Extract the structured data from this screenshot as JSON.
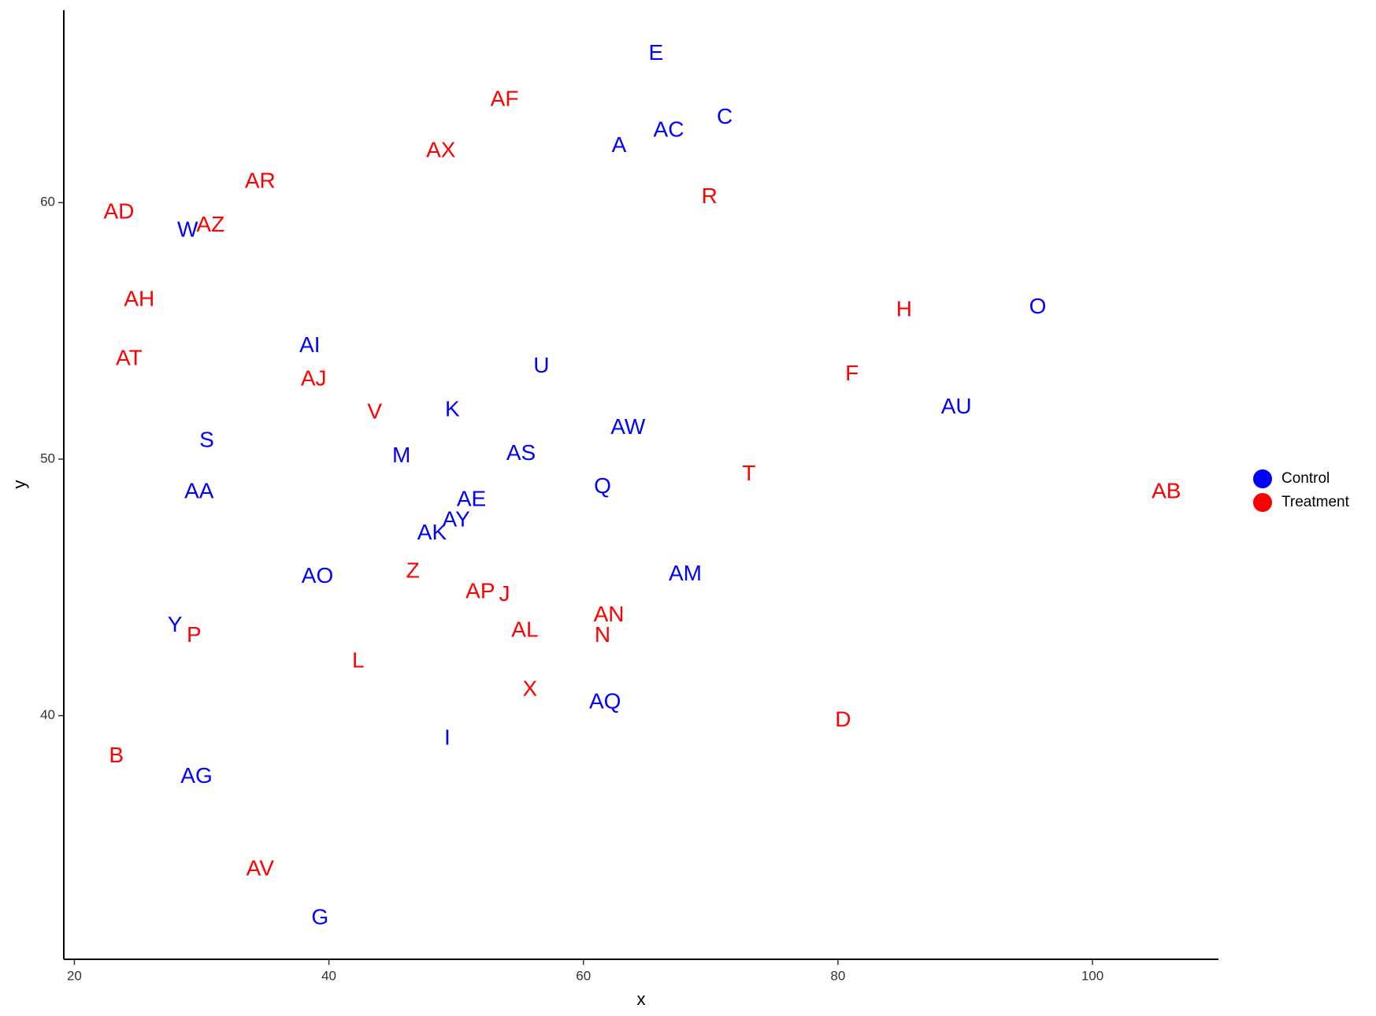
{
  "chart_data": {
    "type": "scatter",
    "xlabel": "x",
    "ylabel": "y",
    "xlim": [
      19.17,
      109.9
    ],
    "ylim": [
      30.5,
      67.5
    ],
    "xticks": [
      20,
      40,
      60,
      80,
      100
    ],
    "yticks": [
      40,
      50,
      60
    ],
    "grid": false,
    "legend": "right",
    "series": [
      {
        "name": "Control",
        "color": "#0000ff",
        "labels": [
          "E",
          "C",
          "AC",
          "A",
          "W",
          "O",
          "AI",
          "U",
          "K",
          "AU",
          "AW",
          "S",
          "M",
          "AS",
          "Q",
          "AA",
          "AE",
          "AY",
          "AK",
          "AO",
          "AM",
          "Y",
          "AQ",
          "I",
          "AG",
          "G"
        ],
        "x": [
          65.7,
          71.1,
          66.7,
          62.8,
          28.9,
          95.7,
          38.5,
          56.7,
          49.7,
          89.3,
          63.5,
          30.4,
          45.7,
          55.1,
          61.5,
          29.8,
          51.2,
          50.0,
          48.1,
          39.1,
          68.0,
          27.9,
          61.7,
          49.3,
          29.6,
          39.3
        ],
        "values": [
          65.8,
          63.3,
          62.8,
          62.2,
          58.9,
          55.9,
          54.4,
          53.6,
          51.9,
          52.0,
          51.2,
          50.7,
          50.1,
          50.2,
          48.9,
          48.7,
          48.4,
          47.6,
          47.1,
          45.4,
          45.5,
          43.5,
          40.5,
          39.1,
          37.6,
          32.1
        ]
      },
      {
        "name": "Treatment",
        "color": "#ff0000",
        "labels": [
          "AF",
          "AX",
          "AR",
          "R",
          "AD",
          "AZ",
          "AH",
          "H",
          "AT",
          "F",
          "AJ",
          "V",
          "T",
          "AB",
          "Z",
          "AP",
          "J",
          "AN",
          "N",
          "AL",
          "P",
          "L",
          "X",
          "D",
          "B",
          "AV"
        ],
        "x": [
          53.8,
          48.8,
          34.6,
          69.9,
          23.5,
          30.7,
          25.1,
          85.2,
          24.3,
          81.1,
          38.8,
          43.6,
          73.0,
          105.8,
          46.6,
          51.9,
          53.8,
          62.0,
          61.5,
          55.4,
          29.4,
          42.3,
          55.8,
          80.4,
          23.3,
          34.6
        ],
        "values": [
          64.0,
          62.0,
          60.8,
          60.2,
          59.6,
          59.1,
          56.2,
          55.8,
          53.9,
          53.3,
          53.1,
          51.8,
          49.4,
          48.7,
          45.6,
          44.8,
          44.7,
          43.9,
          43.1,
          43.3,
          43.1,
          42.1,
          41.0,
          39.8,
          38.4,
          34.0
        ]
      }
    ]
  }
}
